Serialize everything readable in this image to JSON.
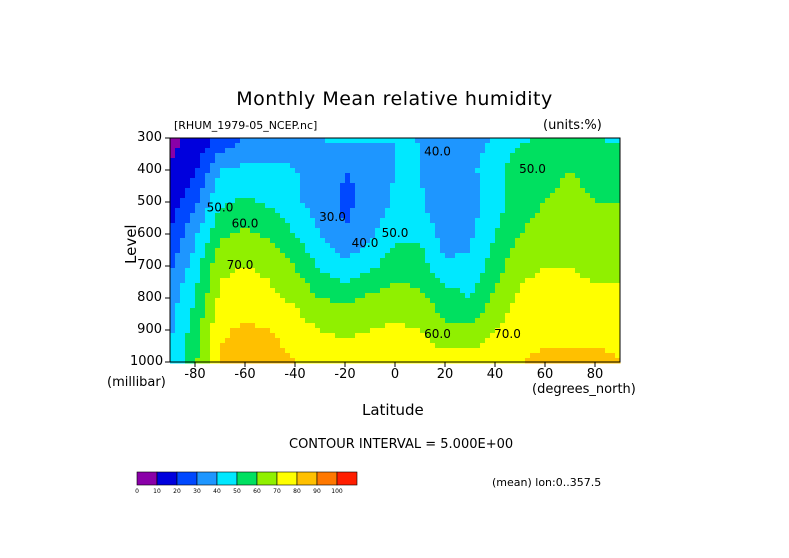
{
  "page": {
    "title": "Monthly Mean relative humidity",
    "dataset_tag": "[RHUM_1979-05_NCEP.nc]",
    "units": "(units:%)",
    "x_axis_label": "Latitude",
    "y_axis_label": "Level",
    "x_units": "(degrees_north)",
    "y_units": "(millibar)",
    "contour_interval": "CONTOUR INTERVAL = 5.000E+00",
    "mean_note": "(mean) lon:0..357.5"
  },
  "chart_data": {
    "type": "heatmap",
    "subtype": "filled-contour",
    "title": "Monthly Mean relative humidity",
    "xlabel": "Latitude",
    "ylabel": "Level",
    "xlim": [
      -90,
      90
    ],
    "ylim": [
      1000,
      300
    ],
    "x_ticks": [
      "-80",
      "-60",
      "-40",
      "-20",
      "0",
      "20",
      "40",
      "60",
      "80"
    ],
    "y_ticks": [
      "300",
      "400",
      "500",
      "600",
      "700",
      "800",
      "900",
      "1000"
    ],
    "x": [
      -90,
      -80,
      -70,
      -60,
      -50,
      -40,
      -30,
      -20,
      -10,
      0,
      10,
      20,
      30,
      40,
      50,
      60,
      70,
      80,
      90
    ],
    "y": [
      300,
      400,
      500,
      600,
      700,
      800,
      900,
      1000
    ],
    "z": [
      [
        8,
        12,
        22,
        30,
        35,
        38,
        40,
        42,
        42,
        40,
        40,
        38,
        38,
        40,
        48,
        52,
        52,
        50,
        48
      ],
      [
        10,
        18,
        40,
        42,
        42,
        40,
        38,
        30,
        32,
        40,
        40,
        32,
        38,
        45,
        58,
        58,
        60,
        58,
        58
      ],
      [
        15,
        28,
        48,
        52,
        48,
        42,
        35,
        28,
        32,
        42,
        42,
        30,
        35,
        45,
        58,
        60,
        62,
        60,
        60
      ],
      [
        20,
        38,
        58,
        62,
        58,
        50,
        40,
        30,
        38,
        48,
        48,
        35,
        38,
        50,
        60,
        62,
        62,
        60,
        62
      ],
      [
        28,
        45,
        68,
        70,
        68,
        60,
        48,
        42,
        48,
        55,
        55,
        42,
        42,
        55,
        68,
        70,
        70,
        68,
        68
      ],
      [
        35,
        50,
        72,
        75,
        72,
        68,
        60,
        58,
        62,
        65,
        62,
        55,
        50,
        62,
        72,
        72,
        72,
        72,
        72
      ],
      [
        38,
        55,
        78,
        82,
        80,
        75,
        70,
        68,
        70,
        72,
        70,
        62,
        62,
        70,
        75,
        78,
        78,
        78,
        78
      ],
      [
        40,
        58,
        82,
        88,
        85,
        80,
        78,
        75,
        76,
        78,
        78,
        75,
        75,
        78,
        80,
        82,
        82,
        82,
        80
      ]
    ],
    "contour_labels": [
      {
        "text": "40.0",
        "x": 17,
        "y": 355
      },
      {
        "text": "50.0",
        "x": 55,
        "y": 410
      },
      {
        "text": "50.0",
        "x": -70,
        "y": 530
      },
      {
        "text": "60.0",
        "x": -60,
        "y": 580
      },
      {
        "text": "30.0",
        "x": -25,
        "y": 560
      },
      {
        "text": "40.0",
        "x": -12,
        "y": 640
      },
      {
        "text": "50.0",
        "x": 0,
        "y": 610
      },
      {
        "text": "70.0",
        "x": -62,
        "y": 710
      },
      {
        "text": "60.0",
        "x": 17,
        "y": 925
      },
      {
        "text": "70.0",
        "x": 45,
        "y": 925
      }
    ],
    "colorbar": {
      "levels": [
        "0",
        "10",
        "20",
        "30",
        "40",
        "50",
        "60",
        "70",
        "80",
        "90",
        "100"
      ],
      "colors": [
        "#8a00a8",
        "#0000dd",
        "#0048ff",
        "#1e96ff",
        "#00e8ff",
        "#00e060",
        "#90f000",
        "#ffff00",
        "#ffc000",
        "#ff7800",
        "#ff1e00"
      ]
    }
  }
}
